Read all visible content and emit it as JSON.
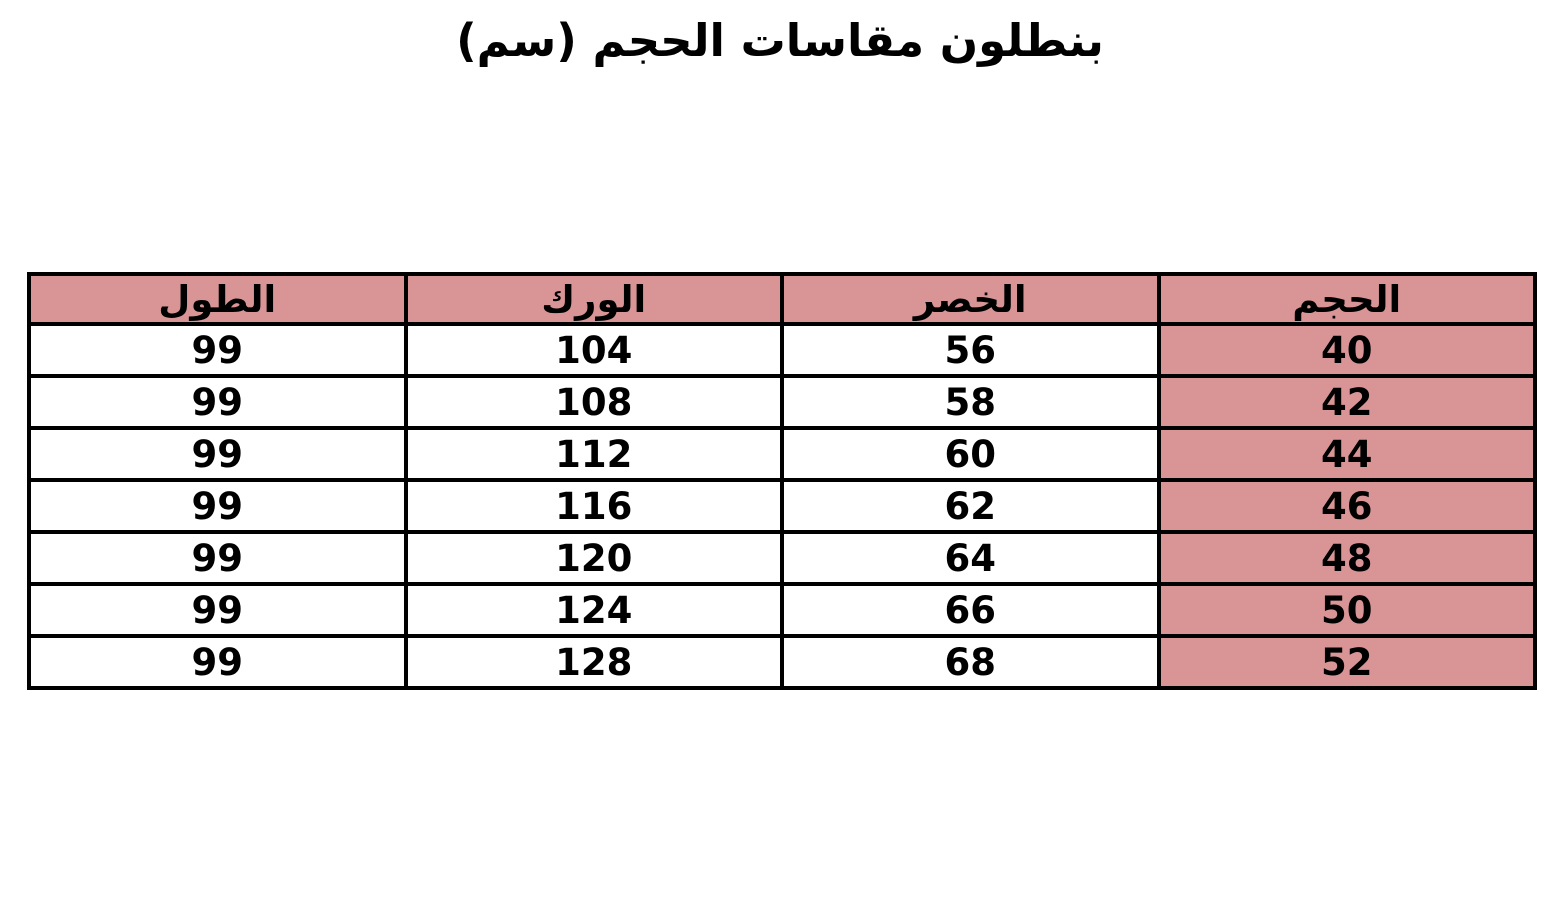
{
  "title": "بنطلون مقاسات الحجم (سم)",
  "colors": {
    "header_bg": "#d99596",
    "size_column_bg": "#d99596",
    "border": "#000000",
    "page_bg": "#ffffff",
    "text": "#000000"
  },
  "chart_data": {
    "type": "table",
    "title": "بنطلون مقاسات الحجم (سم)",
    "columns": [
      {
        "key": "size",
        "label": "الحجم"
      },
      {
        "key": "waist",
        "label": "الخصر"
      },
      {
        "key": "hip",
        "label": "الورك"
      },
      {
        "key": "length",
        "label": "الطول"
      }
    ],
    "rows": [
      {
        "size": "40",
        "waist": "56",
        "hip": "104",
        "length": "99"
      },
      {
        "size": "42",
        "waist": "58",
        "hip": "108",
        "length": "99"
      },
      {
        "size": "44",
        "waist": "60",
        "hip": "112",
        "length": "99"
      },
      {
        "size": "46",
        "waist": "62",
        "hip": "116",
        "length": "99"
      },
      {
        "size": "48",
        "waist": "64",
        "hip": "120",
        "length": "99"
      },
      {
        "size": "50",
        "waist": "66",
        "hip": "124",
        "length": "99"
      },
      {
        "size": "52",
        "waist": "68",
        "hip": "128",
        "length": "99"
      }
    ]
  }
}
